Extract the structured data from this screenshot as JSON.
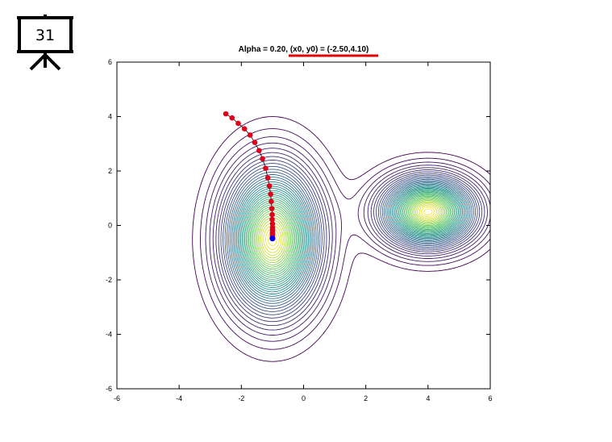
{
  "slide": {
    "number": "31"
  },
  "chart_data": {
    "type": "contour",
    "title": "Alpha = 0.20, (x0, y0) = (-2.50,4.10)",
    "title_underline_color": "#e00000",
    "xlabel": "",
    "ylabel": "",
    "xlim": [
      -6,
      6
    ],
    "ylim": [
      -6,
      6
    ],
    "xticks": [
      -6,
      -4,
      -2,
      0,
      2,
      4,
      6
    ],
    "yticks": [
      -6,
      -4,
      -2,
      0,
      2,
      4,
      6
    ],
    "grid": false,
    "colormap": [
      "#440154",
      "#3b528b",
      "#21918c",
      "#5ec962",
      "#fde725"
    ],
    "contours": {
      "basins": [
        {
          "center": [
            -1.0,
            -0.5
          ],
          "rx": 1.0,
          "ry": 1.75
        },
        {
          "center": [
            4.0,
            0.5
          ],
          "rx": 1.0,
          "ry": 0.85
        }
      ]
    },
    "path_color": "#e0001a",
    "final_point_color": "#0000ff",
    "path": [
      [
        -2.5,
        4.1
      ],
      [
        -2.3,
        3.95
      ],
      [
        -2.1,
        3.75
      ],
      [
        -1.9,
        3.55
      ],
      [
        -1.72,
        3.32
      ],
      [
        -1.57,
        3.05
      ],
      [
        -1.43,
        2.75
      ],
      [
        -1.32,
        2.45
      ],
      [
        -1.22,
        2.1
      ],
      [
        -1.15,
        1.75
      ],
      [
        -1.1,
        1.45
      ],
      [
        -1.06,
        1.15
      ],
      [
        -1.04,
        0.88
      ],
      [
        -1.02,
        0.62
      ],
      [
        -1.01,
        0.4
      ],
      [
        -1.01,
        0.22
      ],
      [
        -1.0,
        0.06
      ],
      [
        -1.0,
        -0.08
      ],
      [
        -1.0,
        -0.18
      ],
      [
        -1.0,
        -0.26
      ],
      [
        -1.0,
        -0.32
      ],
      [
        -1.0,
        -0.38
      ],
      [
        -1.0,
        -0.43
      ]
    ],
    "final_point": [
      -1.0,
      -0.48
    ]
  }
}
